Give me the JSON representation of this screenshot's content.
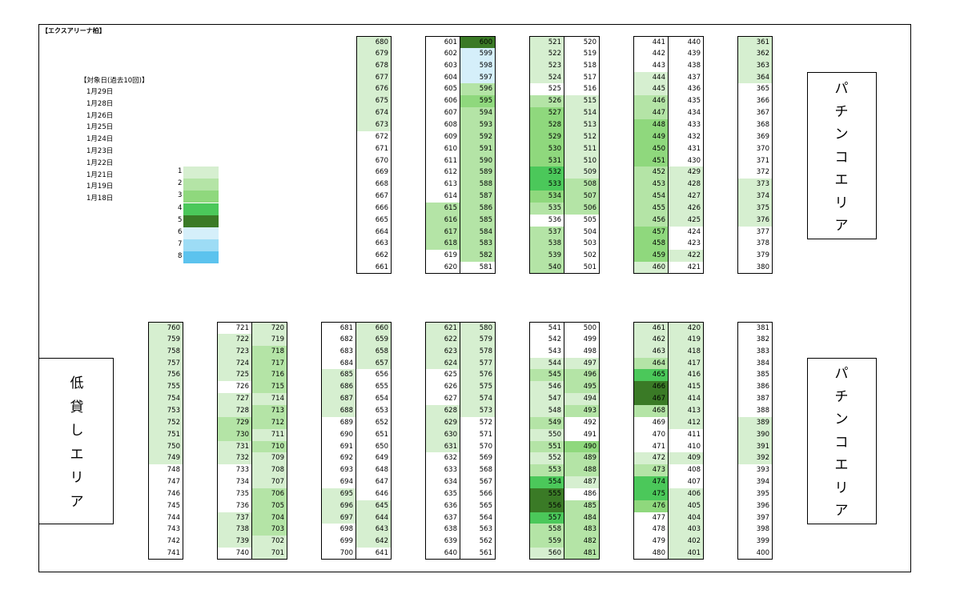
{
  "title": "【エクスアリーナ柏】",
  "dates": {
    "title": "【対象日(過去10回)】",
    "items": [
      "1月29日",
      "1月28日",
      "1月26日",
      "1月25日",
      "1月24日",
      "1月23日",
      "1月22日",
      "1月21日",
      "1月19日",
      "1月18日"
    ]
  },
  "legend": [
    {
      "label": "1",
      "color": "#d6efd0"
    },
    {
      "label": "2",
      "color": "#b4e4a6"
    },
    {
      "label": "3",
      "color": "#8fd87d"
    },
    {
      "label": "4",
      "color": "#4bc85a"
    },
    {
      "label": "5",
      "color": "#3a7a26"
    },
    {
      "label": "6",
      "color": "#d5effa"
    },
    {
      "label": "7",
      "color": "#9ddcf5"
    },
    {
      "label": "8",
      "color": "#5cc3ee"
    }
  ],
  "areas": [
    {
      "id": "pachinko-top",
      "chars": [
        "パ",
        "チ",
        "ン",
        "コ",
        "エ",
        "リ",
        "ア"
      ]
    },
    {
      "id": "pachinko-bottom",
      "chars": [
        "パ",
        "チ",
        "ン",
        "コ",
        "エ",
        "リ",
        "ア"
      ]
    },
    {
      "id": "low-rent",
      "chars": [
        "低",
        "貸",
        "し",
        "エ",
        "リ",
        "ア"
      ]
    }
  ],
  "top_blocks": [
    {
      "cols": [
        {
          "s": 680,
          "d": -1,
          "lv": [
            1,
            1,
            1,
            1,
            1,
            1,
            1,
            1,
            0,
            0,
            0,
            0,
            0,
            0,
            0,
            0,
            0,
            0,
            0,
            0
          ]
        }
      ]
    },
    {
      "cols": [
        {
          "s": 601,
          "d": 1,
          "lv": [
            0,
            0,
            0,
            0,
            0,
            0,
            0,
            0,
            0,
            0,
            0,
            0,
            0,
            0,
            2,
            2,
            2,
            2,
            0,
            0
          ]
        },
        {
          "s": 600,
          "d": -1,
          "lv": [
            5,
            6,
            6,
            6,
            2,
            3,
            2,
            2,
            2,
            2,
            2,
            2,
            2,
            2,
            2,
            2,
            2,
            2,
            2,
            0
          ]
        }
      ]
    },
    {
      "cols": [
        {
          "s": 521,
          "d": 1,
          "lv": [
            1,
            1,
            1,
            1,
            0,
            2,
            3,
            3,
            3,
            3,
            3,
            4,
            4,
            3,
            2,
            0,
            2,
            2,
            2,
            2
          ]
        },
        {
          "s": 520,
          "d": -1,
          "lv": [
            0,
            0,
            0,
            0,
            0,
            1,
            1,
            1,
            1,
            1,
            1,
            1,
            2,
            2,
            2,
            0,
            0,
            0,
            0,
            0
          ]
        }
      ]
    },
    {
      "cols": [
        {
          "s": 441,
          "d": 1,
          "lv": [
            0,
            0,
            0,
            1,
            1,
            2,
            2,
            3,
            3,
            3,
            3,
            2,
            2,
            2,
            2,
            2,
            3,
            3,
            3,
            1
          ]
        },
        {
          "s": 440,
          "d": -1,
          "lv": [
            0,
            0,
            0,
            0,
            0,
            0,
            0,
            0,
            0,
            0,
            0,
            1,
            1,
            1,
            1,
            1,
            0,
            0,
            1,
            0
          ]
        }
      ]
    },
    {
      "cols": [
        {
          "s": 361,
          "d": 1,
          "lv": [
            1,
            1,
            1,
            1,
            0,
            0,
            0,
            0,
            0,
            0,
            0,
            0,
            1,
            1,
            1,
            1,
            0,
            0,
            0,
            0
          ]
        }
      ]
    }
  ],
  "bottom_blocks": [
    {
      "cols": [
        {
          "s": 760,
          "d": -1,
          "lv": [
            1,
            1,
            1,
            1,
            1,
            1,
            1,
            1,
            1,
            1,
            1,
            1,
            0,
            0,
            0,
            0,
            0,
            0,
            0,
            0
          ]
        }
      ]
    },
    {
      "cols": [
        {
          "s": 721,
          "d": 1,
          "lv": [
            0,
            1,
            1,
            1,
            1,
            0,
            1,
            1,
            2,
            2,
            1,
            1,
            0,
            0,
            0,
            0,
            1,
            1,
            1,
            0
          ]
        },
        {
          "s": 720,
          "d": -1,
          "lv": [
            1,
            1,
            2,
            2,
            2,
            2,
            1,
            2,
            2,
            1,
            2,
            1,
            1,
            1,
            2,
            2,
            2,
            2,
            1,
            1
          ]
        }
      ]
    },
    {
      "cols": [
        {
          "s": 681,
          "d": 1,
          "lv": [
            0,
            0,
            0,
            0,
            1,
            1,
            1,
            1,
            0,
            0,
            0,
            0,
            0,
            0,
            1,
            1,
            1,
            0,
            0,
            0
          ]
        },
        {
          "s": 660,
          "d": -1,
          "lv": [
            1,
            1,
            1,
            1,
            0,
            0,
            0,
            0,
            0,
            0,
            0,
            0,
            0,
            0,
            0,
            1,
            1,
            1,
            1,
            0
          ]
        }
      ]
    },
    {
      "cols": [
        {
          "s": 621,
          "d": 1,
          "lv": [
            1,
            1,
            1,
            1,
            0,
            0,
            0,
            1,
            1,
            1,
            1,
            0,
            0,
            0,
            0,
            0,
            0,
            0,
            0,
            0
          ]
        },
        {
          "s": 580,
          "d": -1,
          "lv": [
            1,
            1,
            1,
            1,
            1,
            1,
            1,
            1,
            0,
            0,
            0,
            0,
            0,
            0,
            0,
            0,
            0,
            0,
            0,
            0
          ]
        }
      ]
    },
    {
      "cols": [
        {
          "s": 541,
          "d": 1,
          "lv": [
            0,
            0,
            0,
            1,
            2,
            1,
            1,
            1,
            2,
            1,
            2,
            1,
            2,
            4,
            5,
            5,
            4,
            2,
            2,
            1
          ]
        },
        {
          "s": 500,
          "d": -1,
          "lv": [
            0,
            0,
            0,
            1,
            2,
            2,
            1,
            2,
            0,
            0,
            3,
            2,
            2,
            1,
            0,
            2,
            2,
            2,
            2,
            2
          ]
        }
      ]
    },
    {
      "cols": [
        {
          "s": 461,
          "d": 1,
          "lv": [
            1,
            1,
            1,
            2,
            4,
            5,
            5,
            2,
            0,
            0,
            0,
            1,
            2,
            4,
            4,
            3,
            0,
            0,
            0,
            0
          ]
        },
        {
          "s": 420,
          "d": -1,
          "lv": [
            1,
            1,
            1,
            1,
            1,
            1,
            1,
            1,
            1,
            0,
            0,
            1,
            0,
            0,
            1,
            1,
            1,
            1,
            1,
            1
          ]
        }
      ]
    },
    {
      "cols": [
        {
          "s": 381,
          "d": 1,
          "lv": [
            0,
            0,
            0,
            0,
            0,
            0,
            0,
            0,
            1,
            1,
            1,
            1,
            0,
            0,
            0,
            0,
            0,
            0,
            0,
            0
          ]
        }
      ]
    }
  ]
}
